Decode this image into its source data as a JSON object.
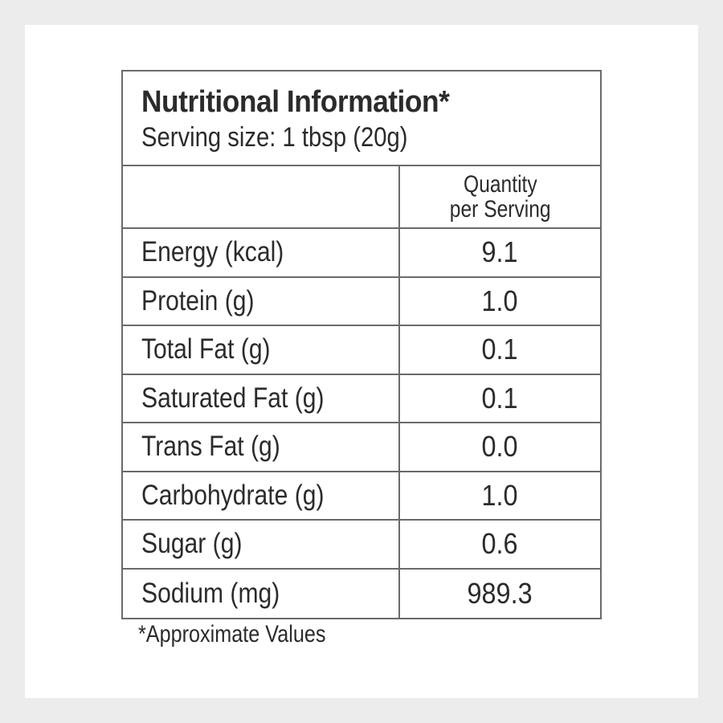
{
  "panel": {
    "title": "Nutritional Information*",
    "serving_size": "Serving size: 1 tbsp (20g)",
    "column_header_line1": "Quantity",
    "column_header_line2": "per Serving",
    "rows": [
      {
        "nutrient": "Energy (kcal)",
        "value": "9.1"
      },
      {
        "nutrient": "Protein (g)",
        "value": "1.0"
      },
      {
        "nutrient": "Total Fat (g)",
        "value": "0.1"
      },
      {
        "nutrient": "Saturated Fat (g)",
        "value": "0.1"
      },
      {
        "nutrient": "Trans Fat (g)",
        "value": "0.0"
      },
      {
        "nutrient": "Carbohydrate (g)",
        "value": "1.0"
      },
      {
        "nutrient": "Sugar (g)",
        "value": "0.6"
      },
      {
        "nutrient": "Sodium (mg)",
        "value": "989.3"
      }
    ],
    "footnote": "*Approximate Values"
  },
  "colors": {
    "page_background": "#ececec",
    "card_background": "#ffffff",
    "text": "#2b2b2b",
    "border": "#6a6a6a"
  }
}
